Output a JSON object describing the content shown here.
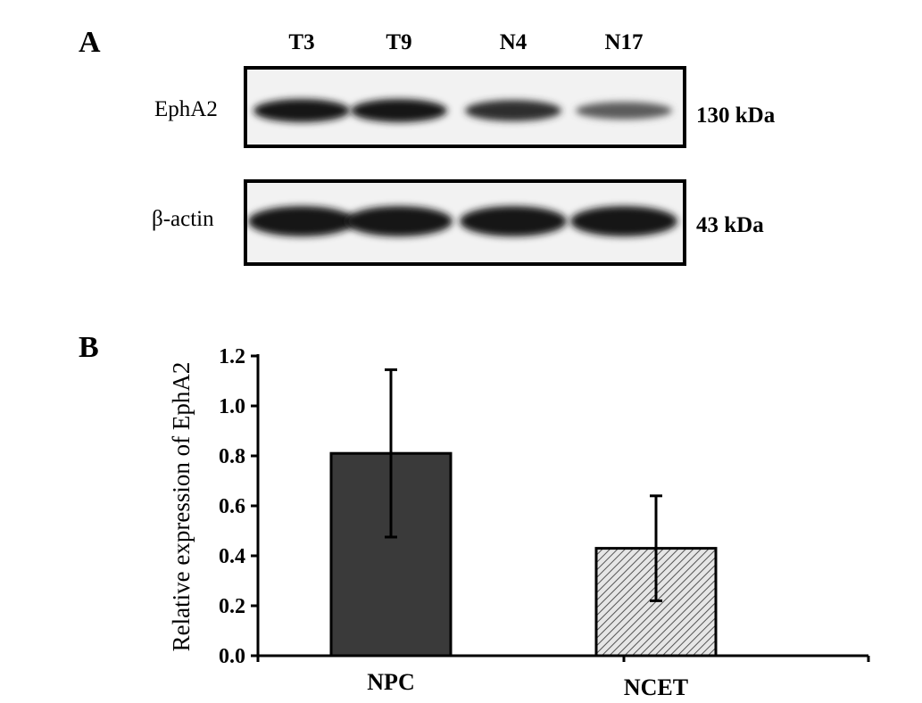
{
  "panel_a": {
    "label": "A",
    "lanes": [
      "T3",
      "T9",
      "N4",
      "N17"
    ],
    "rows": [
      {
        "label": "EphA2",
        "size": "130 kDa",
        "intensities": [
          1.0,
          1.0,
          0.8,
          0.45
        ]
      },
      {
        "label": "β-actin",
        "size": "43 kDa",
        "intensities": [
          1.0,
          1.0,
          1.0,
          1.0
        ]
      }
    ]
  },
  "panel_b": {
    "label": "B"
  },
  "chart_data": {
    "type": "bar",
    "categories": [
      "NPC",
      "NCET"
    ],
    "values": [
      0.81,
      0.43
    ],
    "error": [
      0.335,
      0.21
    ],
    "ylabel": "Relative expression of EphA2",
    "xlabel": "",
    "ylim": [
      0.0,
      1.2
    ],
    "yticks": [
      "0.0",
      "0.2",
      "0.4",
      "0.6",
      "0.8",
      "1.0",
      "1.2"
    ],
    "bar_colors": [
      "#3a3a3a",
      "#d0d0d0"
    ],
    "bar_patterns": [
      "solid",
      "diagonal-hatch"
    ]
  }
}
